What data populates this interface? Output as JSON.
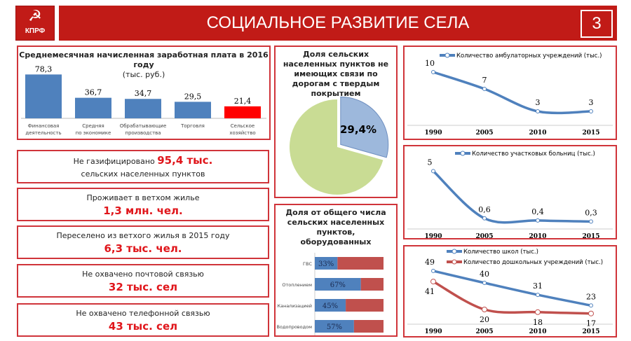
{
  "header": {
    "logo_text": "КПРФ",
    "title": "СОЦИАЛЬНОЕ РАЗВИТИЕ СЕЛА",
    "slide_number": "3"
  },
  "colors": {
    "red": "#c11b17",
    "blue": "#4f81bd",
    "highlight": "#ff0000",
    "bar_red": "#c0504d",
    "pie_green": "#c9dc94",
    "pie_blue": "#9db8dc"
  },
  "info_boxes": [
    {
      "text": "Не газифицировано",
      "value": "95,4 тыс.",
      "text2": "сельских населенных пунктов"
    },
    {
      "text": "Проживает в ветхом жилье",
      "value": "1,3 млн. чел."
    },
    {
      "text": "Переселено из ветхого жилья в 2015 году",
      "value": "6,3 тыс. чел."
    },
    {
      "text": "Не охвачено почтовой связью",
      "value": "32 тыс. сел"
    },
    {
      "text": "Не охвачено телефонной связью",
      "value": "43 тыс. сел"
    }
  ],
  "chart_data": [
    {
      "type": "bar",
      "title": "Среднемесячная начисленная заработная плата в 2016 году",
      "subtitle": "(тыс. руб.)",
      "categories": [
        "Финансовая деятельность",
        "Средняя по экономике",
        "Обрабатывающие производства",
        "Торговля",
        "Сельское хозяйство"
      ],
      "values": [
        78.3,
        36.7,
        34.7,
        29.5,
        21.4
      ],
      "labels": [
        "78,3",
        "36,7",
        "34,7",
        "29,5",
        "21,4"
      ],
      "highlight_index": 4,
      "ylim": [
        0,
        80
      ]
    },
    {
      "type": "pie",
      "title": "Доля сельских населенных пунктов не имеющих связи по дорогам с твердым покрытием",
      "values": [
        29.4,
        70.6
      ],
      "label": "29,4%"
    },
    {
      "type": "bar",
      "stacked": true,
      "title": "Доля от общего числа сельских населенных пунктов, оборудованных",
      "categories": [
        "ГВС",
        "Отоплением",
        "Канализацией",
        "Водопроводом"
      ],
      "values": [
        33,
        67,
        45,
        57
      ],
      "labels": [
        "33%",
        "67%",
        "45%",
        "57%"
      ],
      "ylim": [
        0,
        100
      ]
    },
    {
      "type": "line",
      "x": [
        "1990",
        "2005",
        "2010",
        "2015"
      ],
      "ylim": [
        0,
        12
      ],
      "series": [
        {
          "name": "Количество амбулаторных учреждений (тыс.)",
          "values": [
            10,
            7,
            3,
            3
          ],
          "labels": [
            "10",
            "7",
            "3",
            "3"
          ]
        }
      ]
    },
    {
      "type": "line",
      "x": [
        "1990",
        "2005",
        "2010",
        "2015"
      ],
      "ylim": [
        0,
        6
      ],
      "series": [
        {
          "name": "Количество участковых больниц (тыс.)",
          "values": [
            5,
            0.6,
            0.4,
            0.3
          ],
          "labels": [
            "5",
            "0,6",
            "0,4",
            "0,3"
          ]
        }
      ]
    },
    {
      "type": "line",
      "x": [
        "1990",
        "2005",
        "2010",
        "2015"
      ],
      "ylim": [
        0,
        60
      ],
      "series": [
        {
          "name": "Количество школ (тыс.)",
          "values": [
            49,
            40,
            31,
            23
          ],
          "labels": [
            "49",
            "40",
            "31",
            "23"
          ]
        },
        {
          "name": "Количество дошкольных учреждений (тыс.)",
          "values": [
            41,
            20,
            18,
            17
          ],
          "labels": [
            "41",
            "20",
            "18",
            "17"
          ]
        }
      ]
    }
  ]
}
